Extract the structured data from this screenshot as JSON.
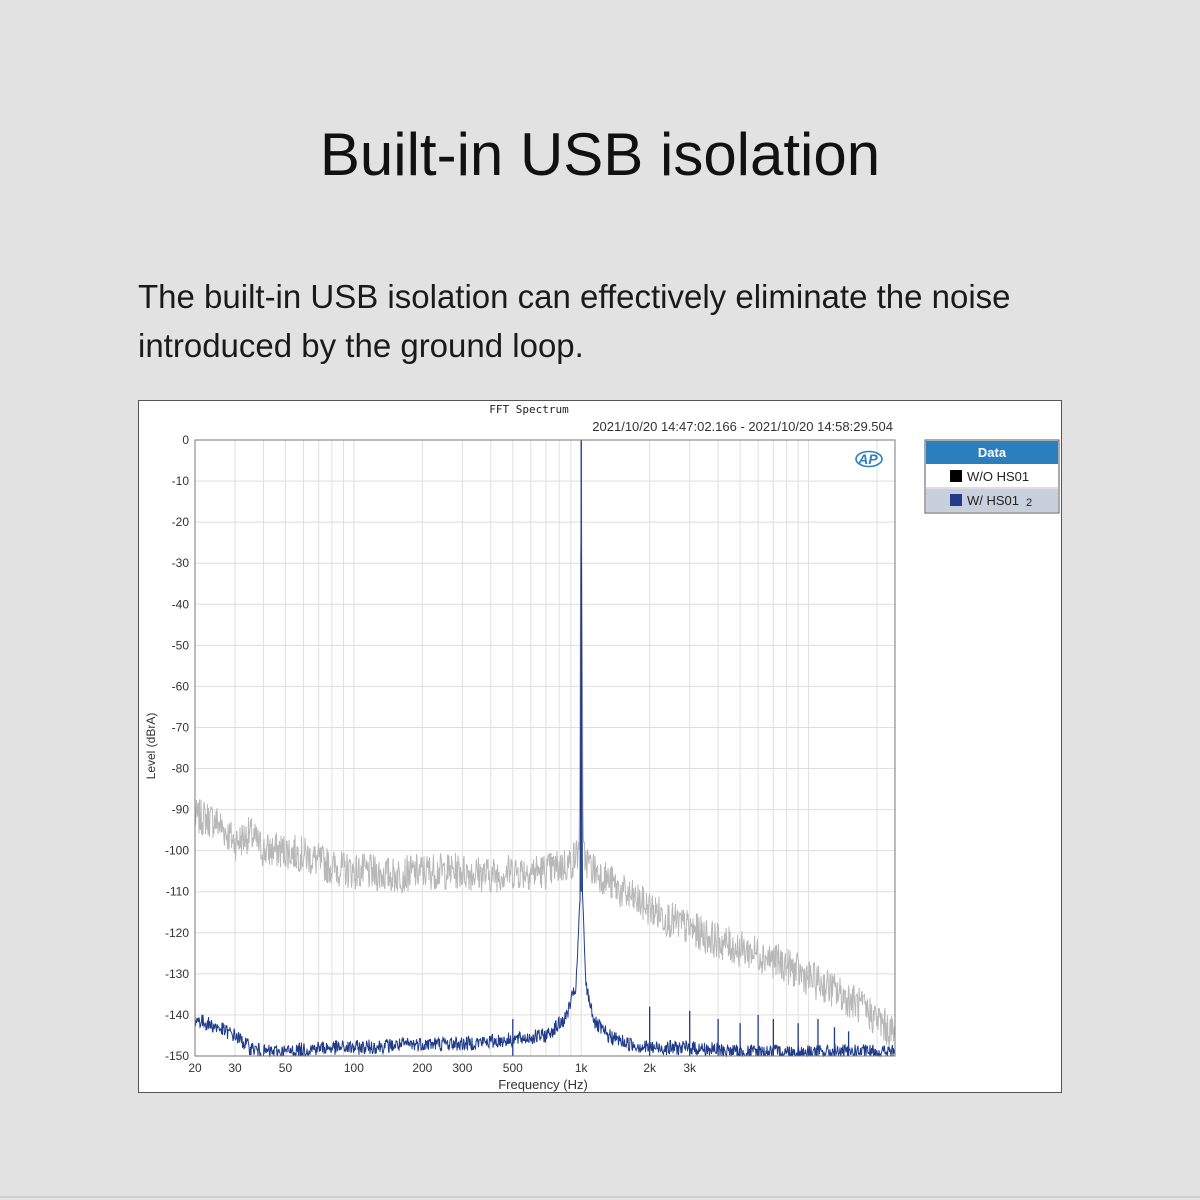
{
  "headline": "Built-in USB isolation",
  "description": "The built-in USB isolation can effectively eliminate the noise introduced by the ground loop.",
  "chart_data": {
    "type": "line",
    "title": "FFT Spectrum",
    "subtitle": "2021/10/20 14:47:02.166 - 2021/10/20 14:58:29.504",
    "xlabel": "Frequency (Hz)",
    "ylabel": "Level (dBrA)",
    "x_scale": "log",
    "xlim": [
      20,
      24000
    ],
    "ylim": [
      -150,
      0
    ],
    "x_ticks": [
      20,
      30,
      50,
      100,
      200,
      300,
      500,
      1000,
      2000,
      3000
    ],
    "x_tick_labels": [
      "20",
      "30",
      "50",
      "100",
      "200",
      "300",
      "500",
      "1k",
      "2k",
      "3k"
    ],
    "y_ticks": [
      0,
      -10,
      -20,
      -30,
      -40,
      -50,
      -60,
      -70,
      -80,
      -90,
      -100,
      -110,
      -120,
      -130,
      -140,
      -150
    ],
    "grid": true,
    "logo": "AP",
    "legend": {
      "title": "Data",
      "placement": "right",
      "entries": [
        {
          "label": "W/O HS01",
          "swatch": "#000000"
        },
        {
          "label": "W/ HS01",
          "suffix": "2",
          "swatch": "#1f3b8a"
        }
      ]
    },
    "series": [
      {
        "legend_label": "W/O HS01",
        "color": "#b8b8b8",
        "x": [
          20,
          22,
          25,
          30,
          35,
          40,
          50,
          60,
          80,
          100,
          150,
          200,
          300,
          400,
          500,
          700,
          900,
          980,
          1000,
          1020,
          1100,
          1300,
          1500,
          2000,
          2500,
          3000,
          4000,
          5000,
          6000,
          8000,
          10000,
          12000,
          16000,
          20000,
          24000
        ],
        "y": [
          -92,
          -92,
          -93,
          -98,
          -96,
          -100,
          -100,
          -101,
          -104,
          -105,
          -106,
          -105,
          -105,
          -106,
          -105,
          -105,
          -103,
          -100,
          0,
          -101,
          -104,
          -107,
          -110,
          -114,
          -117,
          -119,
          -122,
          -124,
          -125,
          -128,
          -131,
          -133,
          -137,
          -141,
          -145
        ]
      },
      {
        "legend_label": "W/ HS01",
        "color": "#1f3b8a",
        "x": [
          20,
          25,
          30,
          35,
          40,
          50,
          70,
          100,
          200,
          300,
          500,
          700,
          850,
          950,
          990,
          1000,
          1010,
          1050,
          1150,
          1300,
          1600,
          2000,
          3000,
          5000,
          10000,
          24000
        ],
        "y": [
          -141,
          -143,
          -145,
          -148,
          -149,
          -149,
          -148,
          -148,
          -147,
          -147,
          -146,
          -145,
          -141,
          -133,
          -110,
          0,
          -110,
          -133,
          -142,
          -145,
          -147,
          -148,
          -148,
          -149,
          -149,
          -149
        ]
      }
    ],
    "spurs": [
      {
        "x": 500,
        "y": -141
      },
      {
        "x": 2000,
        "y": -138
      },
      {
        "x": 3000,
        "y": -139
      },
      {
        "x": 4000,
        "y": -141
      },
      {
        "x": 5000,
        "y": -142
      },
      {
        "x": 6000,
        "y": -140
      },
      {
        "x": 7000,
        "y": -141
      },
      {
        "x": 9000,
        "y": -142
      },
      {
        "x": 11000,
        "y": -141
      },
      {
        "x": 13000,
        "y": -143
      },
      {
        "x": 15000,
        "y": -144
      }
    ]
  }
}
